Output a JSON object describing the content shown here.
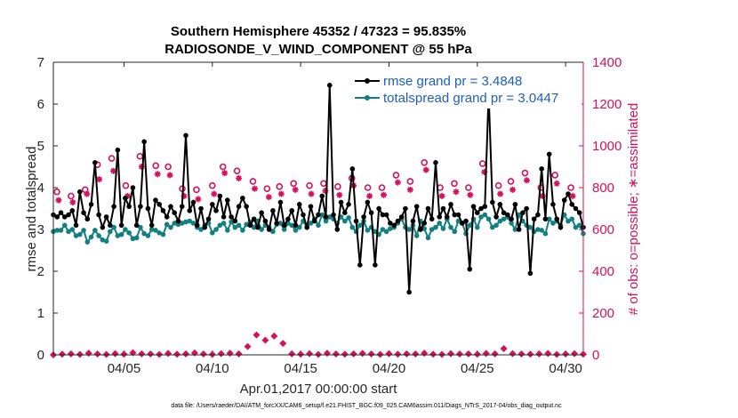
{
  "chart_data": {
    "type": "line",
    "title_line1": "Southern Hemisphere 45352 / 47323 = 95.835%",
    "title_line2": "RADIOSONDE_V_WIND_COMPONENT @ 55 hPa",
    "ylabel_left": "rmse and totalspread",
    "ylabel_right": "# of obs: o=possible; ∗=assimilated",
    "xlabel": "Apr.01,2017 00:00:00 start",
    "footer": "data file: /Users/raeder/DAI/ATM_forcXX/CAM6_setup/f.e21.FHIST_BGC.f09_025.CAM6assim.011/Diags_NTrS_2017-04/obs_diag_output.nc",
    "x_range": [
      1,
      31
    ],
    "ylim_left": [
      0,
      7
    ],
    "ylim_right": [
      0,
      1400
    ],
    "yticks_left": [
      "0",
      "1",
      "2",
      "3",
      "4",
      "5",
      "6",
      "7"
    ],
    "yticks_right": [
      "0",
      "200",
      "400",
      "600",
      "800",
      "1000",
      "1200",
      "1400"
    ],
    "xticks": [
      {
        "x": 5,
        "label": "04/05"
      },
      {
        "x": 10,
        "label": "04/10"
      },
      {
        "x": 15,
        "label": "04/15"
      },
      {
        "x": 20,
        "label": "04/20"
      },
      {
        "x": 25,
        "label": "04/25"
      },
      {
        "x": 30,
        "label": "04/30"
      }
    ],
    "legend": [
      {
        "name": "rmse",
        "label": "rmse grand pr = 3.4848"
      },
      {
        "name": "totalspread",
        "label": "totalspread grand pr = 3.0447"
      }
    ],
    "colors": {
      "rmse": "#000000",
      "totalspread": "#138080",
      "obs": "#d6105a",
      "axis": "#262626"
    },
    "series": [
      {
        "name": "rmse",
        "values": [
          3.35,
          3.3,
          3.4,
          3.3,
          3.35,
          3.45,
          3.1,
          3.9,
          3.4,
          3.25,
          3.6,
          4.6,
          3.35,
          3.05,
          3.3,
          3.1,
          3.55,
          4.9,
          3.1,
          3.75,
          3.55,
          4.0,
          3.1,
          3.55,
          5.1,
          3.5,
          3.1,
          3.7,
          3.6,
          3.45,
          3.3,
          3.55,
          3.4,
          3.2,
          3.55,
          5.25,
          3.45,
          3.65,
          3.1,
          3.5,
          3.05,
          3.25,
          3.6,
          3.45,
          3.8,
          3.3,
          3.7,
          3.3,
          3.2,
          3.55,
          3.75,
          3.55,
          3.1,
          3.25,
          3.05,
          3.4,
          3.2,
          3.0,
          3.45,
          3.15,
          3.65,
          3.1,
          3.25,
          3.45,
          3.1,
          3.6,
          3.35,
          3.05,
          3.55,
          3.2,
          3.35,
          3.8,
          3.3,
          6.45,
          3.35,
          3.0,
          3.65,
          3.4,
          3.6,
          4.45,
          3.2,
          2.15,
          3.3,
          3.65,
          3.4,
          2.15,
          3.5,
          3.35,
          3.35,
          3.15,
          3.1,
          3.2,
          3.3,
          3.5,
          1.5,
          3.2,
          3.55,
          3.0,
          3.15,
          3.5,
          3.25,
          4.6,
          3.3,
          3.5,
          3.3,
          3.6,
          3.35,
          3.35,
          3.15,
          3.2,
          2.05,
          3.55,
          3.4,
          3.5,
          3.55,
          6.25,
          3.65,
          3.3,
          3.6,
          3.4,
          3.35,
          3.25,
          3.6,
          3.0,
          3.4,
          3.5,
          1.95,
          3.25,
          3.35,
          4.45,
          3.25,
          4.8,
          3.6,
          3.25,
          3.05,
          3.7,
          3.85,
          3.6,
          3.5,
          3.4,
          3.05
        ]
      },
      {
        "name": "totalspread",
        "values": [
          2.95,
          2.98,
          2.98,
          3.1,
          2.95,
          3.0,
          2.85,
          2.88,
          2.98,
          2.7,
          2.82,
          2.98,
          2.85,
          2.75,
          2.72,
          2.95,
          3.05,
          2.85,
          2.88,
          3.0,
          2.92,
          2.78,
          2.8,
          3.05,
          2.9,
          2.85,
          3.0,
          2.98,
          2.92,
          2.88,
          3.12,
          3.05,
          3.15,
          3.12,
          3.15,
          3.18,
          3.2,
          3.15,
          3.05,
          3.0,
          3.1,
          3.15,
          2.92,
          3.0,
          3.1,
          3.15,
          2.98,
          3.18,
          3.05,
          3.1,
          2.98,
          3.12,
          3.18,
          3.05,
          3.2,
          3.0,
          3.1,
          3.05,
          2.95,
          3.12,
          3.15,
          3.0,
          3.15,
          3.1,
          2.98,
          3.05,
          3.2,
          3.05,
          3.15,
          3.25,
          3.1,
          3.35,
          3.2,
          3.3,
          3.25,
          3.15,
          3.3,
          3.2,
          3.28,
          3.05,
          2.95,
          3.1,
          3.2,
          2.98,
          3.05,
          2.95,
          2.88,
          3.0,
          2.95,
          3.02,
          3.05,
          3.15,
          3.25,
          3.05,
          3.0,
          3.1,
          2.85,
          3.2,
          3.02,
          2.8,
          3.0,
          3.05,
          3.15,
          3.02,
          3.25,
          3.05,
          2.95,
          3.2,
          3.15,
          2.9,
          3.1,
          3.25,
          3.05,
          3.3,
          3.35,
          3.25,
          3.05,
          3.1,
          3.2,
          3.25,
          3.3,
          3.15,
          3.0,
          3.35,
          3.2,
          3.1,
          3.05,
          2.95,
          3.0,
          2.98,
          2.9,
          3.25,
          3.15,
          3.2,
          3.1,
          3.35,
          3.2,
          3.25,
          3.05,
          3.1,
          2.9
        ]
      },
      {
        "name": "obs_possible",
        "axis": "right",
        "marker": "circle",
        "x": [
          1.2,
          2.0,
          2.8,
          3.5,
          4.3,
          5.1,
          5.9,
          6.8,
          7.5,
          8.3,
          9.1,
          10.0,
          10.6,
          11.4,
          12.3,
          13.1,
          13.8,
          14.6,
          15.5,
          16.3,
          17.1,
          17.9,
          18.8,
          19.6,
          20.4,
          21.2,
          22.0,
          22.9,
          23.7,
          24.5,
          25.3,
          26.2,
          26.9,
          27.7,
          28.6,
          29.4,
          30.3
        ],
        "values": [
          780,
          760,
          790,
          910,
          940,
          810,
          950,
          905,
          900,
          795,
          790,
          810,
          900,
          880,
          830,
          795,
          805,
          820,
          810,
          820,
          805,
          845,
          800,
          800,
          860,
          830,
          920,
          800,
          820,
          800,
          915,
          810,
          830,
          870,
          800,
          860,
          800
        ]
      },
      {
        "name": "obs_assimilated",
        "axis": "right",
        "marker": "star",
        "x": [
          1.3,
          2.1,
          2.9,
          3.6,
          4.4,
          5.2,
          6.0,
          6.9,
          7.6,
          8.4,
          9.2,
          10.1,
          10.7,
          11.5,
          12.4,
          13.2,
          13.9,
          14.7,
          15.6,
          16.4,
          17.2,
          18.0,
          18.9,
          19.7,
          20.5,
          21.2,
          22.1,
          23.0,
          23.8,
          24.6,
          25.4,
          26.3,
          27.0,
          27.8,
          28.7,
          29.5,
          30.4
        ],
        "values": [
          740,
          730,
          770,
          840,
          880,
          760,
          900,
          865,
          860,
          760,
          745,
          770,
          870,
          845,
          795,
          755,
          770,
          790,
          770,
          785,
          765,
          810,
          760,
          765,
          825,
          790,
          885,
          760,
          780,
          765,
          875,
          770,
          790,
          835,
          760,
          820,
          760
        ]
      },
      {
        "name": "obs_rejected",
        "axis": "right",
        "marker": "diamond",
        "x": [
          1,
          1.5,
          2,
          2.5,
          3,
          3.5,
          4,
          4.5,
          5,
          5.5,
          6,
          6.5,
          7,
          7.5,
          8,
          8.5,
          9,
          9.5,
          10,
          10.5,
          11,
          11.5,
          12,
          12.5,
          13,
          13.5,
          14,
          14.5,
          15,
          15.5,
          16,
          16.5,
          17,
          17.5,
          18,
          18.5,
          19,
          19.5,
          20,
          20.5,
          21,
          21.5,
          22,
          22.5,
          23,
          23.5,
          24,
          24.5,
          25,
          25.5,
          26,
          26.5,
          27,
          27.5,
          28,
          28.5,
          29,
          29.5,
          30,
          30.5,
          31
        ],
        "values": [
          0,
          3,
          5,
          2,
          8,
          4,
          2,
          6,
          3,
          10,
          5,
          4,
          2,
          7,
          3,
          5,
          9,
          4,
          2,
          6,
          8,
          5,
          40,
          95,
          70,
          90,
          55,
          5,
          3,
          6,
          2,
          8,
          4,
          3,
          5,
          7,
          4,
          2,
          6,
          3,
          5,
          4,
          8,
          3,
          2,
          6,
          4,
          5,
          3,
          7,
          5,
          30,
          6,
          4,
          3,
          5,
          7,
          2,
          4,
          6,
          3
        ]
      }
    ]
  }
}
